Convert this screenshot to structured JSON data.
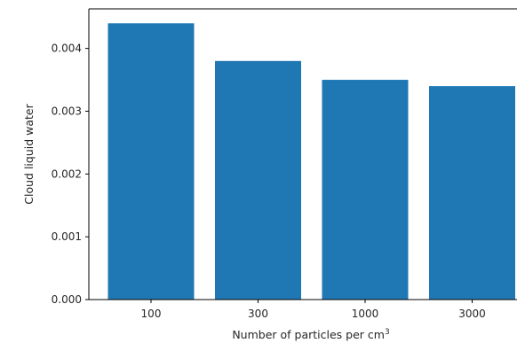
{
  "chart_data": {
    "type": "bar",
    "title": "",
    "categories": [
      "100",
      "300",
      "1000",
      "3000"
    ],
    "values": [
      0.0044,
      0.0038,
      0.0035,
      0.0034
    ],
    "xlabel_main": "Number of particles per cm",
    "xlabel_superscript": "3",
    "ylabel": "Cloud liquid water",
    "ylim": [
      0,
      0.00463
    ],
    "yticks": [
      "0.000",
      "0.001",
      "0.002",
      "0.003",
      "0.004"
    ],
    "ytick_values": [
      0,
      0.001,
      0.002,
      0.003,
      0.004
    ],
    "bar_color": "#1f77b4",
    "grid": false,
    "legend": "none"
  }
}
